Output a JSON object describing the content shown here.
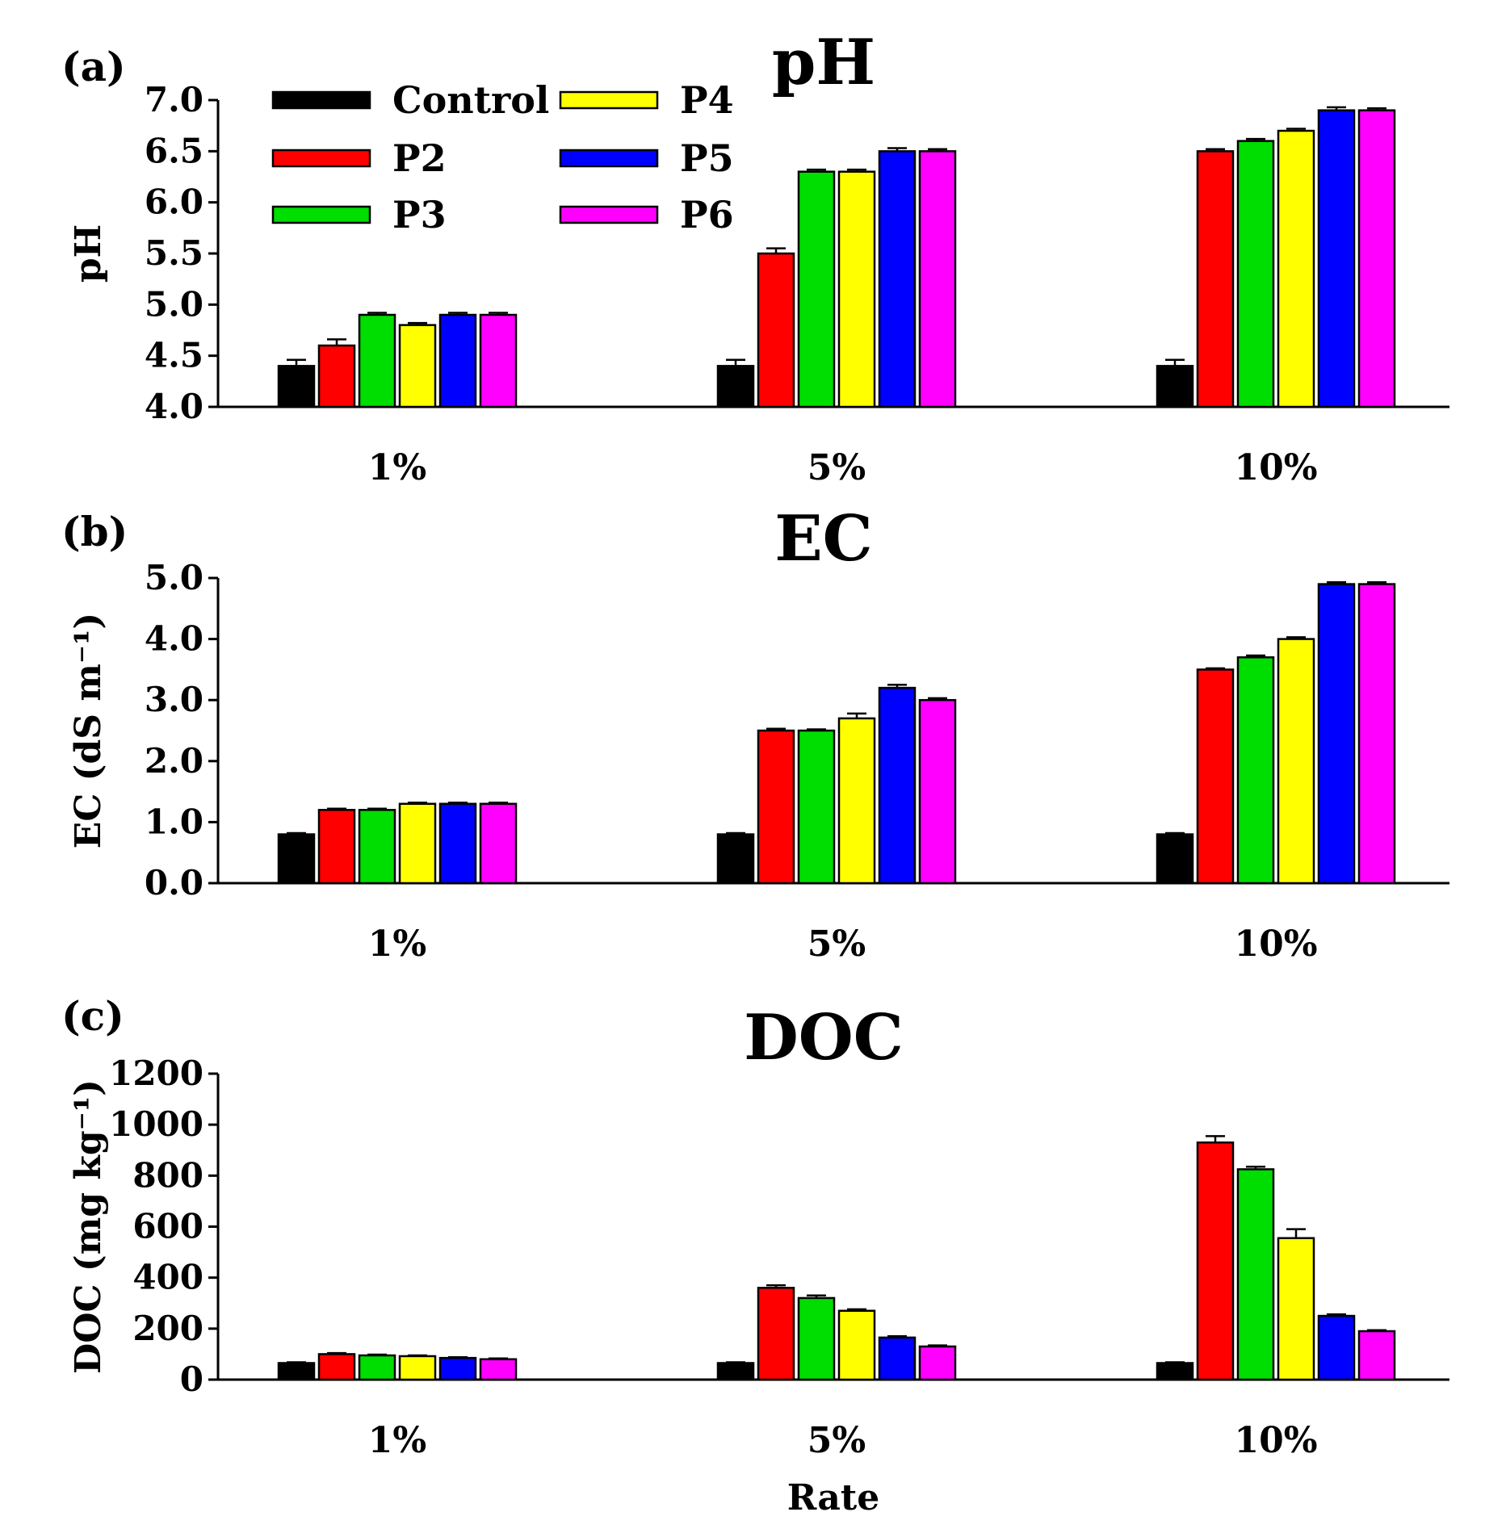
{
  "chart_data": [
    {
      "type": "bar",
      "panel": "(a)",
      "title": "pH",
      "xlabel": "",
      "ylabel": "pH",
      "ylim": [
        4.0,
        7.0
      ],
      "yticks": [
        4.0,
        4.5,
        5.0,
        5.5,
        6.0,
        6.5,
        7.0
      ],
      "ytick_labels": [
        "4.0",
        "4.5",
        "5.0",
        "5.5",
        "6.0",
        "6.5",
        "7.0"
      ],
      "categories": [
        "1%",
        "5%",
        "10%"
      ],
      "series": [
        {
          "name": "Control",
          "color": "#000000",
          "values": [
            4.4,
            4.4,
            4.4
          ],
          "errors": [
            0.06,
            0.06,
            0.06
          ]
        },
        {
          "name": "P2",
          "color": "#ff0000",
          "values": [
            4.6,
            5.5,
            6.5
          ],
          "errors": [
            0.06,
            0.05,
            0.02
          ]
        },
        {
          "name": "P3",
          "color": "#00dd00",
          "values": [
            4.9,
            6.3,
            6.6
          ],
          "errors": [
            0.02,
            0.02,
            0.02
          ]
        },
        {
          "name": "P4",
          "color": "#ffff00",
          "values": [
            4.8,
            6.3,
            6.7
          ],
          "errors": [
            0.02,
            0.02,
            0.02
          ]
        },
        {
          "name": "P5",
          "color": "#0000ff",
          "values": [
            4.9,
            6.5,
            6.9
          ],
          "errors": [
            0.02,
            0.03,
            0.03
          ]
        },
        {
          "name": "P6",
          "color": "#ff00ff",
          "values": [
            4.9,
            6.5,
            6.9
          ],
          "errors": [
            0.02,
            0.02,
            0.02
          ]
        }
      ]
    },
    {
      "type": "bar",
      "panel": "(b)",
      "title": "EC",
      "xlabel": "",
      "ylabel": "EC (dS m⁻¹)",
      "ylim": [
        0.0,
        5.0
      ],
      "yticks": [
        0.0,
        1.0,
        2.0,
        3.0,
        4.0,
        5.0
      ],
      "ytick_labels": [
        "0.0",
        "1.0",
        "2.0",
        "3.0",
        "4.0",
        "5.0"
      ],
      "categories": [
        "1%",
        "5%",
        "10%"
      ],
      "series": [
        {
          "name": "Control",
          "color": "#000000",
          "values": [
            0.8,
            0.8,
            0.8
          ],
          "errors": [
            0.02,
            0.02,
            0.02
          ]
        },
        {
          "name": "P2",
          "color": "#ff0000",
          "values": [
            1.2,
            2.5,
            3.5
          ],
          "errors": [
            0.02,
            0.03,
            0.02
          ]
        },
        {
          "name": "P3",
          "color": "#00dd00",
          "values": [
            1.2,
            2.5,
            3.7
          ],
          "errors": [
            0.02,
            0.02,
            0.03
          ]
        },
        {
          "name": "P4",
          "color": "#ffff00",
          "values": [
            1.3,
            2.7,
            4.0
          ],
          "errors": [
            0.02,
            0.08,
            0.03
          ]
        },
        {
          "name": "P5",
          "color": "#0000ff",
          "values": [
            1.3,
            3.2,
            4.9
          ],
          "errors": [
            0.02,
            0.05,
            0.03
          ]
        },
        {
          "name": "P6",
          "color": "#ff00ff",
          "values": [
            1.3,
            3.0,
            4.9
          ],
          "errors": [
            0.02,
            0.03,
            0.03
          ]
        }
      ]
    },
    {
      "type": "bar",
      "panel": "(c)",
      "title": "DOC",
      "xlabel": "Rate",
      "ylabel": "DOC (mg kg⁻¹)",
      "ylim": [
        0,
        1200
      ],
      "yticks": [
        0,
        200,
        400,
        600,
        800,
        1000,
        1200
      ],
      "ytick_labels": [
        "0",
        "200",
        "400",
        "600",
        "800",
        "1000",
        "1200"
      ],
      "categories": [
        "1%",
        "5%",
        "10%"
      ],
      "series": [
        {
          "name": "Control",
          "color": "#000000",
          "values": [
            65,
            65,
            65
          ],
          "errors": [
            3,
            3,
            3
          ]
        },
        {
          "name": "P2",
          "color": "#ff0000",
          "values": [
            100,
            360,
            930
          ],
          "errors": [
            4,
            10,
            25
          ]
        },
        {
          "name": "P3",
          "color": "#00dd00",
          "values": [
            95,
            320,
            825
          ],
          "errors": [
            3,
            10,
            10
          ]
        },
        {
          "name": "P4",
          "color": "#ffff00",
          "values": [
            92,
            270,
            555
          ],
          "errors": [
            3,
            6,
            35
          ]
        },
        {
          "name": "P5",
          "color": "#0000ff",
          "values": [
            85,
            165,
            250
          ],
          "errors": [
            3,
            5,
            6
          ]
        },
        {
          "name": "P6",
          "color": "#ff00ff",
          "values": [
            80,
            130,
            190
          ],
          "errors": [
            3,
            4,
            4
          ]
        }
      ]
    }
  ],
  "legend": {
    "entries": [
      "Control",
      "P2",
      "P3",
      "P4",
      "P5",
      "P6"
    ],
    "colors": [
      "#000000",
      "#ff0000",
      "#00dd00",
      "#ffff00",
      "#0000ff",
      "#ff00ff"
    ]
  }
}
